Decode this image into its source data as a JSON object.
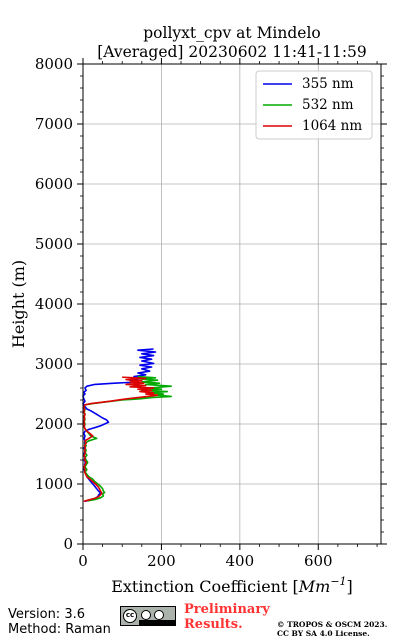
{
  "chart_data": {
    "type": "line",
    "title": "pollyxt_cpv at Mindelo",
    "subtitle": "[Averaged] 20230602 11:41-11:59",
    "xlabel": "Extinction Coefficient [",
    "xlabel_unit_base": "Mm",
    "xlabel_unit_exp": "−1",
    "xlabel_close": "]",
    "ylabel": "Height (m)",
    "xlim": [
      0,
      760
    ],
    "ylim": [
      0,
      8000
    ],
    "x_ticks": [
      0,
      200,
      400,
      600
    ],
    "x_tick_labels": [
      "0",
      "200",
      "400",
      "600"
    ],
    "y_ticks": [
      0,
      1000,
      2000,
      3000,
      4000,
      5000,
      6000,
      7000,
      8000
    ],
    "y_tick_labels": [
      "0",
      "1000",
      "2000",
      "3000",
      "4000",
      "5000",
      "6000",
      "7000",
      "8000"
    ],
    "grid": true,
    "legend_position": "top-right",
    "series": [
      {
        "name": "355 nm",
        "color": "#0000ee",
        "points": [
          [
            180,
            3250
          ],
          [
            140,
            3230
          ],
          [
            185,
            3200
          ],
          [
            150,
            3170
          ],
          [
            180,
            3140
          ],
          [
            145,
            3110
          ],
          [
            175,
            3080
          ],
          [
            150,
            3050
          ],
          [
            180,
            3010
          ],
          [
            145,
            2980
          ],
          [
            175,
            2950
          ],
          [
            150,
            2920
          ],
          [
            170,
            2880
          ],
          [
            140,
            2850
          ],
          [
            160,
            2820
          ],
          [
            130,
            2790
          ],
          [
            150,
            2760
          ],
          [
            120,
            2730
          ],
          [
            140,
            2700
          ],
          [
            80,
            2680
          ],
          [
            30,
            2660
          ],
          [
            10,
            2630
          ],
          [
            5,
            2600
          ],
          [
            8,
            2560
          ],
          [
            2,
            2530
          ],
          [
            5,
            2500
          ],
          [
            0,
            2470
          ],
          [
            2,
            2420
          ],
          [
            5,
            2380
          ],
          [
            0,
            2340
          ],
          [
            5,
            2290
          ],
          [
            10,
            2250
          ],
          [
            20,
            2220
          ],
          [
            30,
            2180
          ],
          [
            40,
            2140
          ],
          [
            50,
            2100
          ],
          [
            60,
            2070
          ],
          [
            65,
            2030
          ],
          [
            55,
            2000
          ],
          [
            45,
            1970
          ],
          [
            30,
            1940
          ],
          [
            15,
            1910
          ],
          [
            5,
            1880
          ],
          [
            2,
            1840
          ],
          [
            5,
            1800
          ],
          [
            3,
            1760
          ],
          [
            5,
            1720
          ],
          [
            4,
            1680
          ],
          [
            6,
            1640
          ],
          [
            3,
            1600
          ],
          [
            5,
            1560
          ],
          [
            4,
            1520
          ],
          [
            2,
            1480
          ],
          [
            5,
            1440
          ],
          [
            3,
            1400
          ],
          [
            6,
            1360
          ],
          [
            4,
            1320
          ],
          [
            5,
            1280
          ],
          [
            3,
            1240
          ],
          [
            5,
            1200
          ],
          [
            8,
            1160
          ],
          [
            10,
            1120
          ],
          [
            15,
            1080
          ],
          [
            20,
            1040
          ],
          [
            25,
            1000
          ],
          [
            30,
            960
          ],
          [
            35,
            920
          ],
          [
            40,
            880
          ],
          [
            45,
            850
          ],
          [
            40,
            820
          ],
          [
            38,
            790
          ],
          [
            30,
            760
          ],
          [
            15,
            730
          ],
          [
            5,
            710
          ]
        ]
      },
      {
        "name": "532 nm",
        "color": "#00aa00",
        "points": [
          [
            140,
            2790
          ],
          [
            185,
            2770
          ],
          [
            145,
            2750
          ],
          [
            190,
            2730
          ],
          [
            150,
            2700
          ],
          [
            195,
            2680
          ],
          [
            160,
            2660
          ],
          [
            225,
            2630
          ],
          [
            170,
            2600
          ],
          [
            200,
            2580
          ],
          [
            150,
            2560
          ],
          [
            215,
            2540
          ],
          [
            170,
            2520
          ],
          [
            205,
            2500
          ],
          [
            190,
            2480
          ],
          [
            225,
            2460
          ],
          [
            175,
            2440
          ],
          [
            145,
            2420
          ],
          [
            100,
            2400
          ],
          [
            60,
            2370
          ],
          [
            25,
            2340
          ],
          [
            5,
            2320
          ],
          [
            2,
            2280
          ],
          [
            5,
            2240
          ],
          [
            3,
            2200
          ],
          [
            5,
            2160
          ],
          [
            3,
            2120
          ],
          [
            5,
            2080
          ],
          [
            3,
            2040
          ],
          [
            5,
            2000
          ],
          [
            3,
            1960
          ],
          [
            5,
            1920
          ],
          [
            10,
            1880
          ],
          [
            15,
            1840
          ],
          [
            20,
            1800
          ],
          [
            35,
            1760
          ],
          [
            15,
            1720
          ],
          [
            5,
            1680
          ],
          [
            8,
            1640
          ],
          [
            5,
            1600
          ],
          [
            8,
            1560
          ],
          [
            5,
            1520
          ],
          [
            10,
            1480
          ],
          [
            5,
            1440
          ],
          [
            8,
            1400
          ],
          [
            12,
            1360
          ],
          [
            8,
            1320
          ],
          [
            5,
            1280
          ],
          [
            10,
            1240
          ],
          [
            5,
            1200
          ],
          [
            10,
            1160
          ],
          [
            15,
            1120
          ],
          [
            25,
            1080
          ],
          [
            30,
            1040
          ],
          [
            38,
            1000
          ],
          [
            45,
            960
          ],
          [
            50,
            920
          ],
          [
            52,
            880
          ],
          [
            55,
            860
          ],
          [
            50,
            830
          ],
          [
            52,
            800
          ],
          [
            45,
            770
          ],
          [
            30,
            740
          ],
          [
            12,
            720
          ]
        ]
      },
      {
        "name": "1064 nm",
        "color": "#dd0000",
        "points": [
          [
            100,
            2780
          ],
          [
            160,
            2760
          ],
          [
            110,
            2740
          ],
          [
            150,
            2720
          ],
          [
            120,
            2700
          ],
          [
            155,
            2680
          ],
          [
            110,
            2660
          ],
          [
            160,
            2640
          ],
          [
            120,
            2620
          ],
          [
            180,
            2600
          ],
          [
            140,
            2580
          ],
          [
            175,
            2560
          ],
          [
            145,
            2540
          ],
          [
            180,
            2520
          ],
          [
            160,
            2500
          ],
          [
            190,
            2480
          ],
          [
            165,
            2460
          ],
          [
            140,
            2440
          ],
          [
            100,
            2410
          ],
          [
            70,
            2380
          ],
          [
            45,
            2360
          ],
          [
            20,
            2340
          ],
          [
            5,
            2320
          ],
          [
            2,
            2280
          ],
          [
            4,
            2240
          ],
          [
            2,
            2200
          ],
          [
            5,
            2160
          ],
          [
            3,
            2120
          ],
          [
            4,
            2080
          ],
          [
            2,
            2040
          ],
          [
            4,
            2000
          ],
          [
            3,
            1960
          ],
          [
            5,
            1920
          ],
          [
            10,
            1880
          ],
          [
            18,
            1840
          ],
          [
            25,
            1800
          ],
          [
            15,
            1760
          ],
          [
            5,
            1720
          ],
          [
            8,
            1680
          ],
          [
            4,
            1640
          ],
          [
            6,
            1600
          ],
          [
            4,
            1560
          ],
          [
            6,
            1520
          ],
          [
            3,
            1480
          ],
          [
            5,
            1440
          ],
          [
            4,
            1400
          ],
          [
            8,
            1360
          ],
          [
            5,
            1320
          ],
          [
            3,
            1280
          ],
          [
            5,
            1240
          ],
          [
            4,
            1200
          ],
          [
            7,
            1160
          ],
          [
            10,
            1120
          ],
          [
            18,
            1080
          ],
          [
            25,
            1040
          ],
          [
            32,
            1000
          ],
          [
            38,
            960
          ],
          [
            42,
            920
          ],
          [
            45,
            880
          ],
          [
            48,
            850
          ],
          [
            45,
            820
          ],
          [
            40,
            790
          ],
          [
            30,
            760
          ],
          [
            12,
            730
          ],
          [
            2,
            710
          ]
        ]
      }
    ]
  },
  "footer": {
    "version": "Version: 3.6",
    "method": "Method: Raman",
    "cc_badge": "cc by sa",
    "preliminary": "Preliminary\nResults.",
    "copyright": "© TROPOS & OSCM 2023.\nCC BY SA 4.0 License."
  }
}
